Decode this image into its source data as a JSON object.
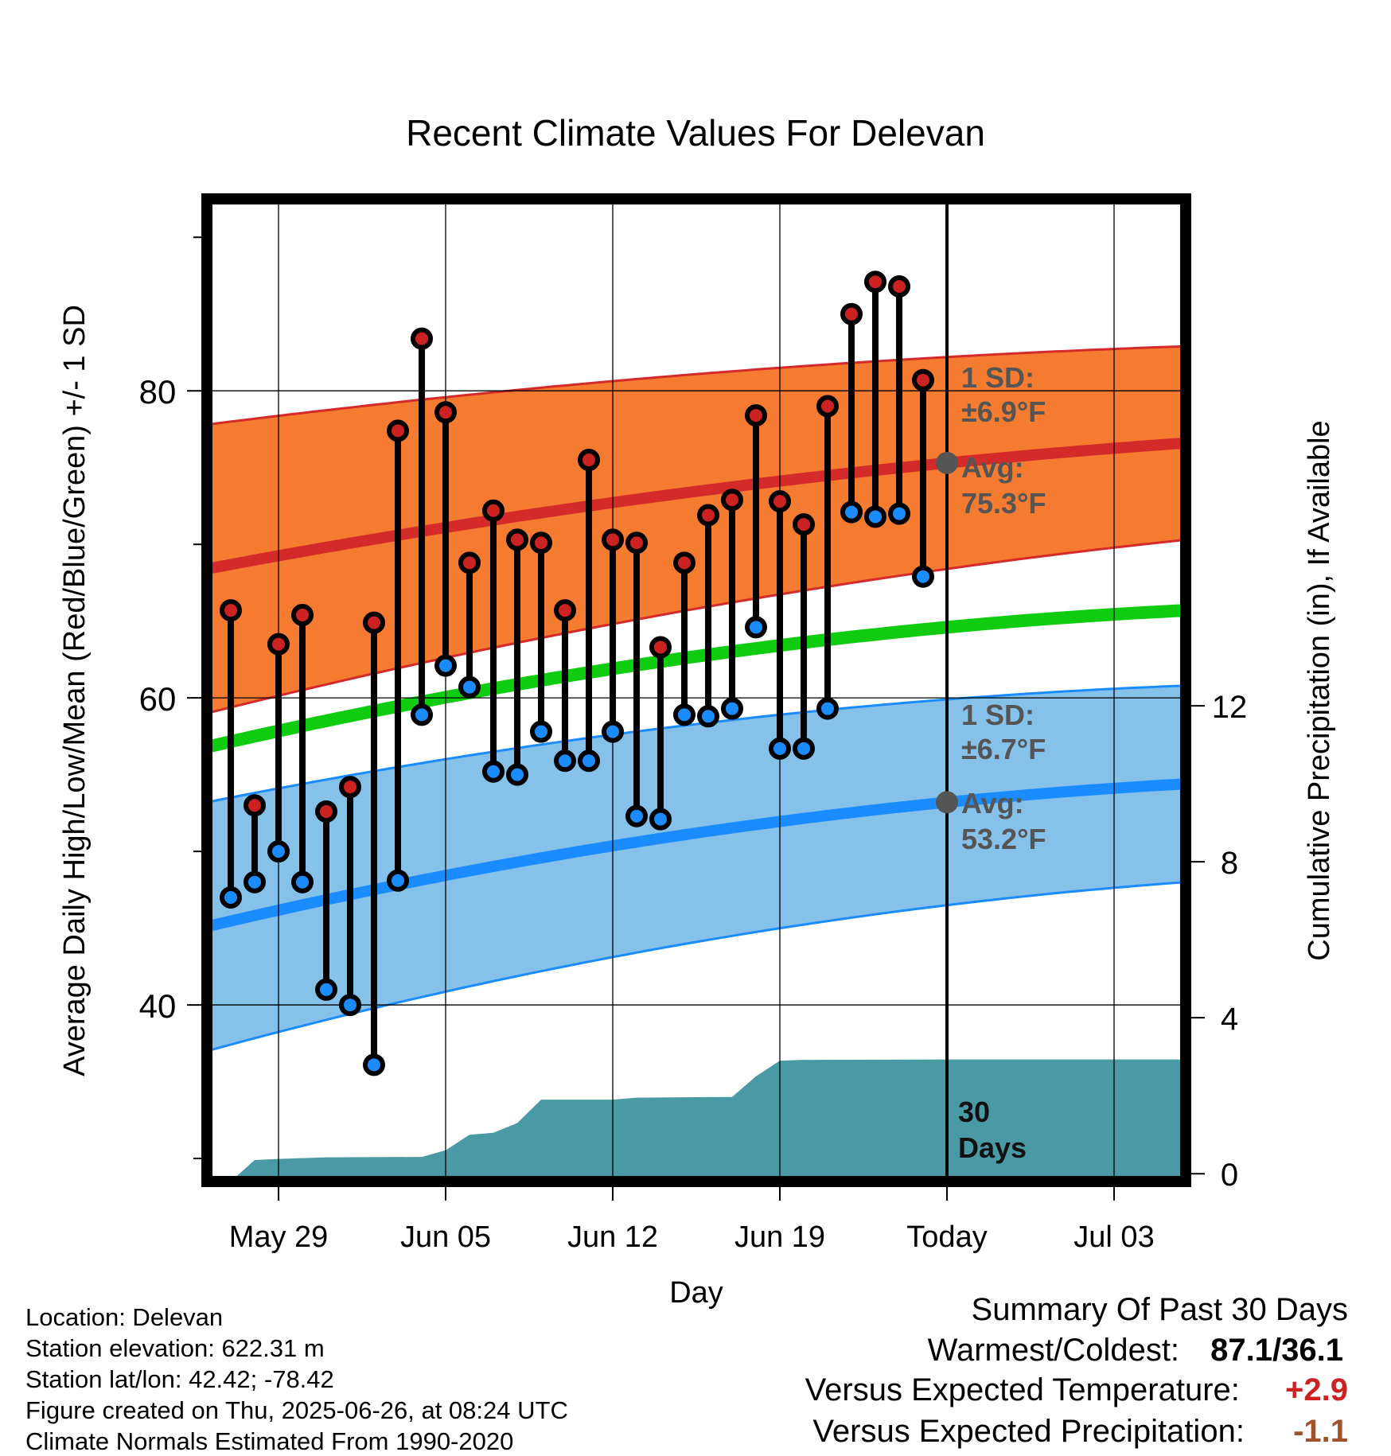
{
  "title": "Recent Climate Values For Delevan",
  "xlabel": "Day",
  "ylabel_left": "Average Daily High/Low/Mean (Red/Blue/Green) +/- 1 SD",
  "ylabel_right": "Cumulative Precipitation (in), If Available",
  "info": {
    "location": "Location: Delevan",
    "elevation": "Station elevation: 622.31 m",
    "latlon": "Station lat/lon: 42.42; -78.42",
    "created": "Figure created on Thu, 2025-06-26, at 08:24 UTC",
    "normals": "Climate Normals Estimated From 1990-2020"
  },
  "summary": {
    "heading": "Summary Of Past 30 Days",
    "warm_cold_label": "Warmest/Coldest:",
    "warm_cold_value": "87.1/36.1",
    "temp_label": "Versus Expected Temperature:",
    "temp_value": "+2.9",
    "precip_label": "Versus Expected Precipitation:",
    "precip_value": "-1.1"
  },
  "colors": {
    "high_band": "#f47b30",
    "high_mean": "#d42a2a",
    "low_band": "#85c1e9",
    "low_mean": "#1a8cff",
    "mean_line": "#10cc10",
    "precip_area": "#4a9aa5",
    "high_dot": "#cc2222",
    "low_dot": "#1a8cff",
    "ann_text": "#555555",
    "temp_anomaly": "#cc2222",
    "precip_anomaly": "#a0522d"
  },
  "chart_data": {
    "type": "line",
    "x_start_date": "2025-05-27",
    "x_end_date": "2025-07-05",
    "xlim": [
      "2025-05-26",
      "2025-07-06"
    ],
    "x_ticks": [
      {
        "date": "2025-05-29",
        "label": "May 29"
      },
      {
        "date": "2025-06-05",
        "label": "Jun 05"
      },
      {
        "date": "2025-06-12",
        "label": "Jun 12"
      },
      {
        "date": "2025-06-19",
        "label": "Jun 19"
      },
      {
        "date": "2025-06-26",
        "label": "Today"
      },
      {
        "date": "2025-07-03",
        "label": "Jul 03"
      }
    ],
    "today": "2025-06-26",
    "ylim_left": [
      28.5,
      92.5
    ],
    "y_ticks_left": [
      40,
      60,
      80
    ],
    "ylim_right": [
      -0.2,
      25
    ],
    "y_ticks_right": [
      0,
      4,
      8,
      12
    ],
    "normals": {
      "dates": [
        "2025-05-26",
        "2025-06-26",
        "2025-07-06"
      ],
      "high_mean": [
        68.4,
        75.3,
        76.6
      ],
      "high_sd": [
        9.4,
        6.9,
        6.3
      ],
      "low_mean": [
        45.1,
        53.2,
        54.4
      ],
      "low_sd": [
        8.1,
        6.7,
        6.4
      ],
      "mean": [
        56.8,
        64.6,
        65.7
      ]
    },
    "daily": {
      "dates": [
        "2025-05-27",
        "2025-05-28",
        "2025-05-29",
        "2025-05-30",
        "2025-05-31",
        "2025-06-01",
        "2025-06-02",
        "2025-06-03",
        "2025-06-04",
        "2025-06-05",
        "2025-06-06",
        "2025-06-07",
        "2025-06-08",
        "2025-06-09",
        "2025-06-10",
        "2025-06-11",
        "2025-06-12",
        "2025-06-13",
        "2025-06-14",
        "2025-06-15",
        "2025-06-16",
        "2025-06-17",
        "2025-06-18",
        "2025-06-19",
        "2025-06-20",
        "2025-06-21",
        "2025-06-22",
        "2025-06-23",
        "2025-06-24",
        "2025-06-25"
      ],
      "high": [
        65.7,
        53.0,
        63.5,
        65.4,
        52.6,
        54.2,
        64.9,
        77.4,
        83.4,
        78.6,
        68.8,
        72.2,
        70.3,
        70.1,
        65.7,
        75.5,
        70.3,
        70.1,
        63.3,
        68.8,
        71.9,
        72.9,
        78.4,
        72.8,
        71.3,
        79.0,
        85.0,
        87.1,
        86.8,
        80.7
      ],
      "low": [
        47.0,
        48.0,
        50.0,
        48.0,
        41.0,
        40.0,
        36.1,
        48.1,
        58.9,
        62.1,
        60.7,
        55.2,
        55.0,
        57.8,
        55.9,
        55.9,
        57.8,
        52.3,
        52.1,
        58.9,
        58.8,
        59.3,
        64.6,
        56.7,
        56.7,
        59.3,
        72.1,
        71.8,
        72.0,
        67.9
      ]
    },
    "precip": {
      "dates": [
        "2025-05-26",
        "2025-05-27",
        "2025-05-28",
        "2025-05-29",
        "2025-05-31",
        "2025-06-04",
        "2025-06-05",
        "2025-06-06",
        "2025-06-07",
        "2025-06-08",
        "2025-06-09",
        "2025-06-10",
        "2025-06-12",
        "2025-06-13",
        "2025-06-17",
        "2025-06-18",
        "2025-06-19",
        "2025-06-20",
        "2025-06-26",
        "2025-07-06"
      ],
      "cumulative": [
        -0.2,
        -0.2,
        0.35,
        0.38,
        0.42,
        0.43,
        0.6,
        1.0,
        1.05,
        1.3,
        1.9,
        1.9,
        1.9,
        1.95,
        1.97,
        2.5,
        2.9,
        2.92,
        2.93,
        2.93
      ]
    },
    "annotations": {
      "high_sd": "1 SD:",
      "high_sd_value": "±6.9°F",
      "high_avg": "Avg:",
      "high_avg_value": "75.3°F",
      "low_sd": "1 SD:",
      "low_sd_value": "±6.7°F",
      "low_avg": "Avg:",
      "low_avg_value": "53.2°F",
      "days_count": "30",
      "days_label": "Days"
    }
  }
}
